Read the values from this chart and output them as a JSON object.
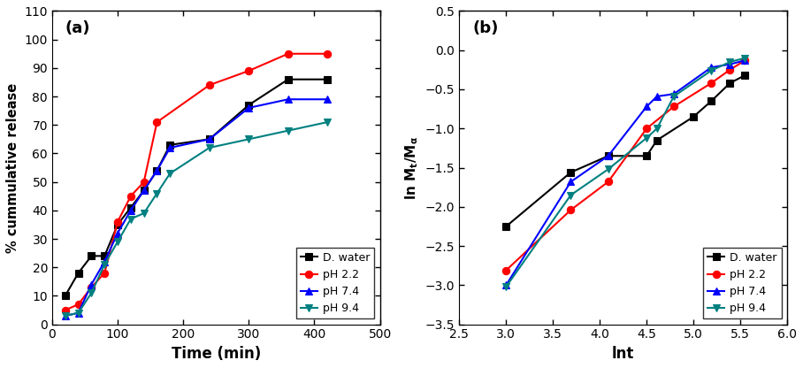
{
  "panel_a": {
    "title": "(a)",
    "xlabel": "Time (min)",
    "ylabel": "% cummulative release",
    "xlim": [
      0,
      500
    ],
    "ylim": [
      0,
      110
    ],
    "xticks": [
      0,
      100,
      200,
      300,
      400,
      500
    ],
    "yticks": [
      0,
      10,
      20,
      30,
      40,
      50,
      60,
      70,
      80,
      90,
      100,
      110
    ],
    "series": [
      {
        "label": "D. water",
        "color": "#000000",
        "marker": "s",
        "x": [
          20,
          40,
          60,
          80,
          100,
          120,
          140,
          160,
          180,
          240,
          300,
          360,
          420
        ],
        "y": [
          10,
          18,
          24,
          24,
          35,
          41,
          47,
          54,
          63,
          65,
          77,
          86,
          86
        ]
      },
      {
        "label": "pH 2.2",
        "color": "#ff0000",
        "marker": "o",
        "x": [
          20,
          40,
          60,
          80,
          100,
          120,
          140,
          160,
          240,
          300,
          360,
          420
        ],
        "y": [
          5,
          7,
          13,
          18,
          36,
          45,
          50,
          71,
          84,
          89,
          95,
          95
        ]
      },
      {
        "label": "pH 7.4",
        "color": "#0000ff",
        "marker": "^",
        "x": [
          20,
          40,
          60,
          80,
          100,
          120,
          140,
          160,
          180,
          240,
          300,
          360,
          420
        ],
        "y": [
          3,
          4,
          14,
          22,
          32,
          40,
          47,
          54,
          62,
          65,
          76,
          79,
          79
        ]
      },
      {
        "label": "pH 9.4",
        "color": "#008080",
        "marker": "v",
        "x": [
          20,
          40,
          60,
          80,
          100,
          120,
          140,
          160,
          180,
          240,
          300,
          360,
          420
        ],
        "y": [
          3,
          4,
          11,
          21,
          29,
          37,
          39,
          46,
          53,
          62,
          65,
          68,
          71
        ]
      }
    ]
  },
  "panel_b": {
    "title": "(b)",
    "xlabel": "lnt",
    "xlim": [
      2.5,
      6.0
    ],
    "ylim": [
      -3.5,
      0.5
    ],
    "xticks": [
      2.5,
      3.0,
      3.5,
      4.0,
      4.5,
      5.0,
      5.5,
      6.0
    ],
    "yticks": [
      -3.5,
      -3.0,
      -2.5,
      -2.0,
      -1.5,
      -1.0,
      -0.5,
      0.0,
      0.5
    ],
    "series": [
      {
        "label": "D. water",
        "color": "#000000",
        "marker": "s",
        "x": [
          3.0,
          3.69,
          4.09,
          4.5,
          4.61,
          5.0,
          5.19,
          5.39,
          5.55
        ],
        "y": [
          -2.25,
          -1.56,
          -1.35,
          -1.35,
          -1.15,
          -0.85,
          -0.65,
          -0.42,
          -0.32
        ]
      },
      {
        "label": "pH 2.2",
        "color": "#ff0000",
        "marker": "o",
        "x": [
          3.0,
          3.69,
          4.09,
          4.5,
          4.79,
          5.19,
          5.39,
          5.55
        ],
        "y": [
          -2.81,
          -2.04,
          -1.68,
          -1.0,
          -0.72,
          -0.42,
          -0.25,
          -0.13
        ]
      },
      {
        "label": "pH 7.4",
        "color": "#0000ff",
        "marker": "^",
        "x": [
          3.0,
          3.69,
          4.09,
          4.5,
          4.61,
          4.79,
          5.19,
          5.39,
          5.55
        ],
        "y": [
          -3.0,
          -1.68,
          -1.35,
          -0.72,
          -0.59,
          -0.56,
          -0.22,
          -0.18,
          -0.13
        ]
      },
      {
        "label": "pH 9.4",
        "color": "#008080",
        "marker": "v",
        "x": [
          3.0,
          3.69,
          4.09,
          4.5,
          4.61,
          4.79,
          5.19,
          5.39,
          5.55
        ],
        "y": [
          -3.02,
          -1.85,
          -1.52,
          -1.12,
          -1.0,
          -0.59,
          -0.26,
          -0.15,
          -0.1
        ]
      }
    ]
  }
}
